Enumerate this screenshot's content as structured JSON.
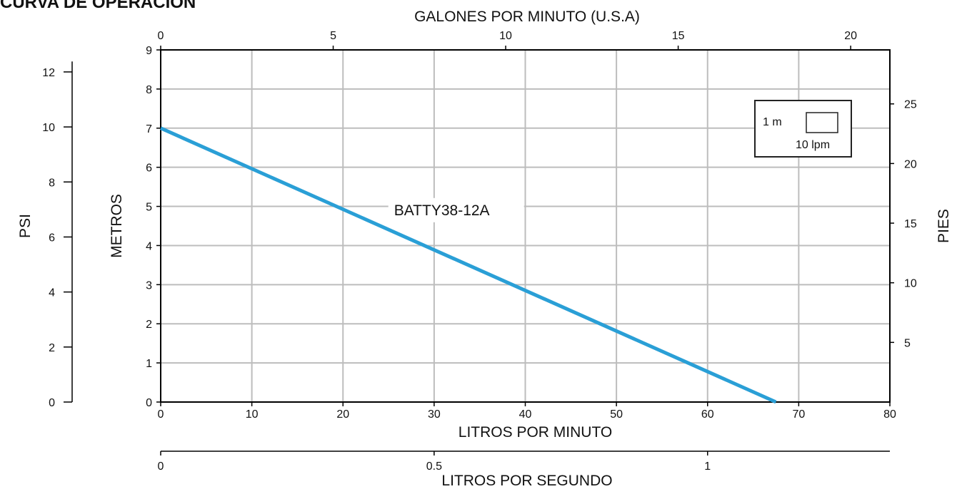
{
  "page_title": "CURVA DE OPERACIÓN",
  "colors": {
    "line": "#2a9fd6",
    "grid": "#bdbdbd",
    "axis": "#000000"
  },
  "chart_data": {
    "type": "line",
    "title": "CURVA DE OPERACIÓN",
    "xlabel": "LITROS POR MINUTO",
    "ylabel": "METROS",
    "xlim": [
      0,
      80
    ],
    "ylim": [
      0,
      9
    ],
    "x_ticks": [
      0,
      10,
      20,
      30,
      40,
      50,
      60,
      70,
      80
    ],
    "y_ticks": [
      0,
      1,
      2,
      3,
      4,
      5,
      6,
      7,
      8,
      9
    ],
    "grid": true,
    "series": [
      {
        "name": "BATTY38-12A",
        "x": [
          0,
          67.5
        ],
        "y": [
          7,
          0
        ]
      }
    ],
    "secondary_axes": {
      "top": {
        "label": "GALONES POR MINUTO (U.S.A)",
        "ticks": [
          "0",
          "5",
          "10",
          "15",
          "20"
        ],
        "values": [
          0,
          5,
          10,
          15,
          20
        ],
        "unit_per_lpm": 0.2642
      },
      "bottom2": {
        "label": "LITROS POR SEGUNDO",
        "ticks": [
          "0",
          "0.5",
          "1"
        ],
        "values": [
          0,
          0.5,
          1
        ],
        "unit_per_lpm": 0.016667
      },
      "right": {
        "label": "PIES",
        "ticks": [
          "5",
          "10",
          "15",
          "20",
          "25"
        ],
        "values": [
          5,
          10,
          15,
          20,
          25
        ],
        "unit_per_m": 3.2808
      },
      "left2": {
        "label": "PSI",
        "ticks": [
          "0",
          "2",
          "4",
          "6",
          "8",
          "10",
          "12"
        ],
        "values": [
          0,
          2,
          4,
          6,
          8,
          10,
          12
        ],
        "unit_per_m": 1.4223
      }
    },
    "legend": {
      "height_label": "1 m",
      "flow_label": "10 lpm",
      "placement": "top-right"
    }
  }
}
